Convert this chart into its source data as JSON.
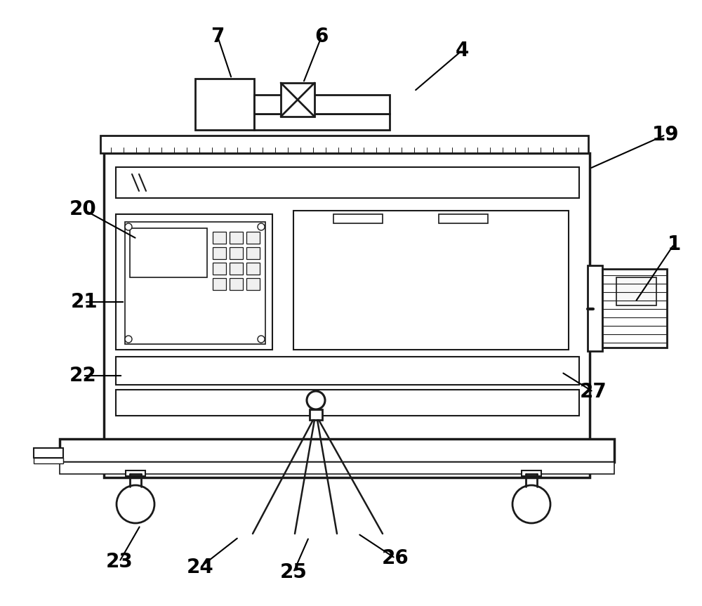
{
  "bg_color": "#ffffff",
  "lc": "#1a1a1a",
  "lw": 2.0,
  "tlw": 1.2,
  "fs": 20
}
